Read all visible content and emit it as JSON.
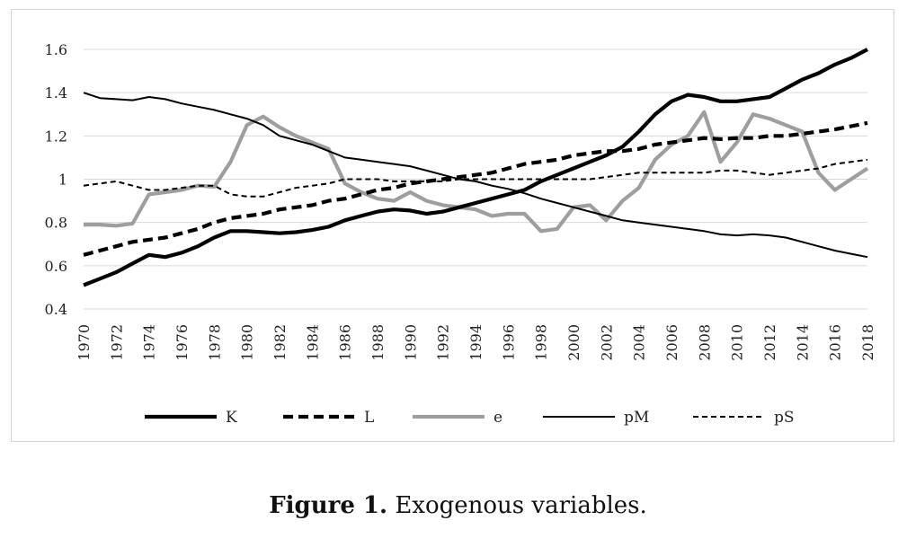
{
  "caption": {
    "label": "Figure 1.",
    "text": " Exogenous variables."
  },
  "chart_data": {
    "type": "line",
    "title": "",
    "xlabel": "",
    "ylabel": "",
    "ylim": [
      0.4,
      1.6
    ],
    "yticks": [
      "0.4",
      "0.6",
      "0.8",
      "1",
      "1.2",
      "1.4",
      "1.6"
    ],
    "xticks": [
      "1970",
      "1972",
      "1974",
      "1976",
      "1978",
      "1980",
      "1982",
      "1984",
      "1986",
      "1988",
      "1990",
      "1992",
      "1994",
      "1996",
      "1998",
      "2000",
      "2002",
      "2004",
      "2006",
      "2008",
      "2010",
      "2012",
      "2014",
      "2016",
      "2018"
    ],
    "grid": "horizontal",
    "legend": "bottom",
    "x": [
      1970,
      1971,
      1972,
      1973,
      1974,
      1975,
      1976,
      1977,
      1978,
      1979,
      1980,
      1981,
      1982,
      1983,
      1984,
      1985,
      1986,
      1987,
      1988,
      1989,
      1990,
      1991,
      1992,
      1993,
      1994,
      1995,
      1996,
      1997,
      1998,
      1999,
      2000,
      2001,
      2002,
      2003,
      2004,
      2005,
      2006,
      2007,
      2008,
      2009,
      2010,
      2011,
      2012,
      2013,
      2014,
      2015,
      2016,
      2017,
      2018
    ],
    "series": [
      {
        "name": "K",
        "color": "#000000",
        "style": "thick-solid",
        "values": [
          0.51,
          0.54,
          0.57,
          0.61,
          0.65,
          0.64,
          0.66,
          0.69,
          0.73,
          0.76,
          0.76,
          0.755,
          0.75,
          0.755,
          0.765,
          0.78,
          0.81,
          0.83,
          0.85,
          0.86,
          0.855,
          0.84,
          0.85,
          0.87,
          0.89,
          0.91,
          0.93,
          0.95,
          0.99,
          1.02,
          1.05,
          1.08,
          1.11,
          1.15,
          1.22,
          1.3,
          1.36,
          1.39,
          1.38,
          1.36,
          1.36,
          1.37,
          1.38,
          1.42,
          1.46,
          1.49,
          1.53,
          1.56,
          1.6
        ]
      },
      {
        "name": "L",
        "color": "#000000",
        "style": "thick-dashed",
        "values": [
          0.65,
          0.67,
          0.69,
          0.71,
          0.72,
          0.73,
          0.75,
          0.77,
          0.8,
          0.82,
          0.83,
          0.84,
          0.86,
          0.87,
          0.88,
          0.9,
          0.91,
          0.93,
          0.95,
          0.96,
          0.98,
          0.99,
          1.0,
          1.01,
          1.02,
          1.03,
          1.05,
          1.07,
          1.08,
          1.09,
          1.11,
          1.12,
          1.13,
          1.13,
          1.14,
          1.16,
          1.17,
          1.18,
          1.19,
          1.185,
          1.19,
          1.19,
          1.2,
          1.2,
          1.21,
          1.22,
          1.23,
          1.245,
          1.26
        ]
      },
      {
        "name": "e",
        "color": "#9e9e9e",
        "style": "thick-solid",
        "values": [
          0.79,
          0.79,
          0.785,
          0.795,
          0.93,
          0.94,
          0.95,
          0.97,
          0.965,
          1.08,
          1.25,
          1.29,
          1.24,
          1.2,
          1.17,
          1.14,
          0.98,
          0.94,
          0.91,
          0.9,
          0.94,
          0.9,
          0.88,
          0.87,
          0.86,
          0.83,
          0.84,
          0.84,
          0.76,
          0.77,
          0.87,
          0.88,
          0.81,
          0.9,
          0.96,
          1.09,
          1.16,
          1.2,
          1.31,
          1.08,
          1.17,
          1.3,
          1.28,
          1.25,
          1.22,
          1.03,
          0.95,
          1.0,
          1.05
        ]
      },
      {
        "name": "pM",
        "color": "#000000",
        "style": "thin-solid",
        "values": [
          1.4,
          1.375,
          1.37,
          1.365,
          1.38,
          1.37,
          1.35,
          1.335,
          1.32,
          1.3,
          1.28,
          1.25,
          1.2,
          1.18,
          1.16,
          1.13,
          1.1,
          1.09,
          1.08,
          1.07,
          1.06,
          1.04,
          1.02,
          1.0,
          0.99,
          0.97,
          0.955,
          0.935,
          0.91,
          0.89,
          0.87,
          0.85,
          0.83,
          0.81,
          0.8,
          0.79,
          0.78,
          0.77,
          0.76,
          0.745,
          0.74,
          0.745,
          0.74,
          0.73,
          0.71,
          0.69,
          0.67,
          0.655,
          0.64
        ]
      },
      {
        "name": "pS",
        "color": "#000000",
        "style": "thin-dashed",
        "values": [
          0.97,
          0.98,
          0.99,
          0.97,
          0.95,
          0.95,
          0.96,
          0.97,
          0.97,
          0.93,
          0.92,
          0.92,
          0.94,
          0.96,
          0.97,
          0.98,
          1.0,
          1.0,
          1.0,
          0.99,
          0.99,
          0.99,
          0.99,
          1.0,
          1.0,
          1.0,
          1.0,
          1.0,
          1.0,
          1.0,
          1.0,
          1.0,
          1.01,
          1.02,
          1.03,
          1.03,
          1.03,
          1.03,
          1.03,
          1.04,
          1.04,
          1.03,
          1.02,
          1.03,
          1.04,
          1.05,
          1.07,
          1.08,
          1.09
        ]
      }
    ]
  }
}
